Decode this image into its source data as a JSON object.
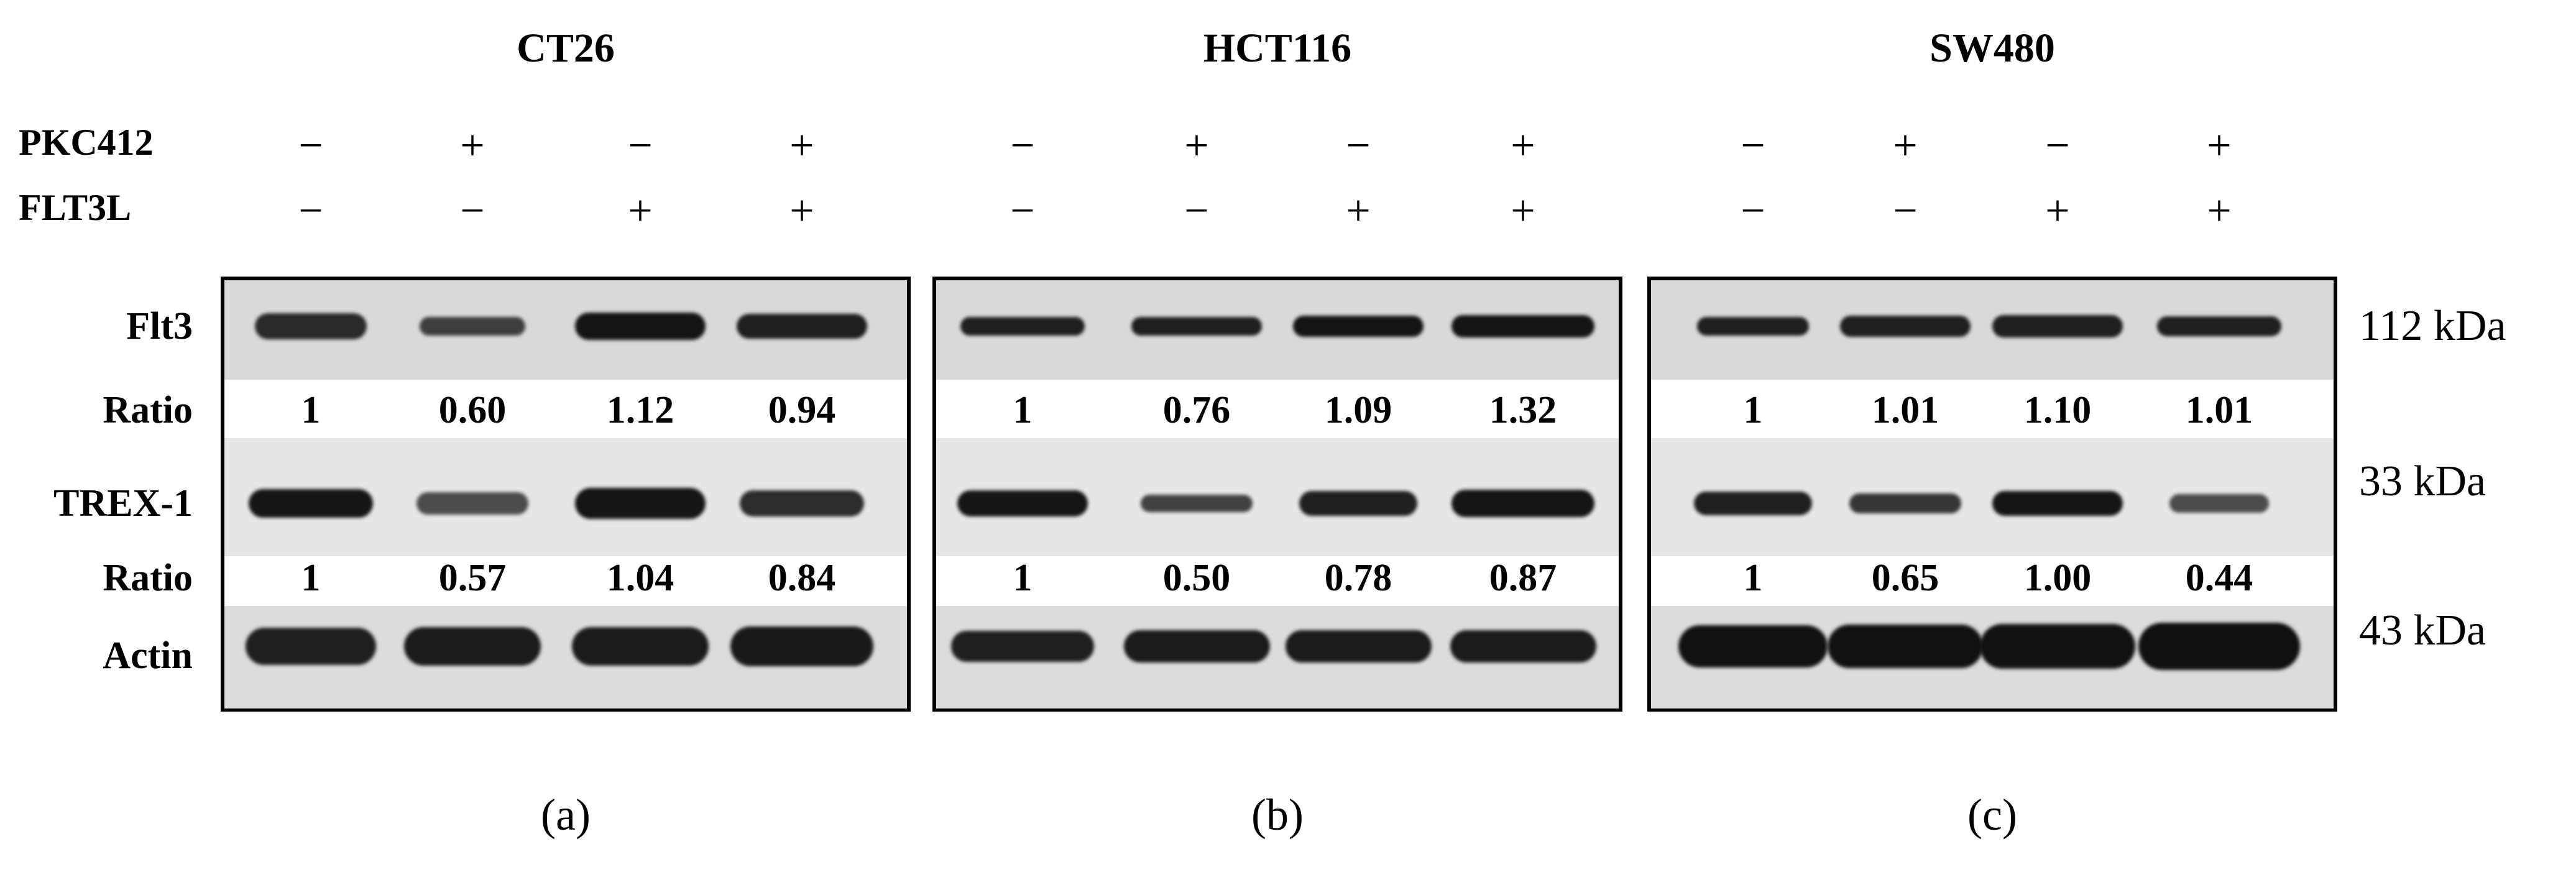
{
  "figure": {
    "panels": [
      {
        "title": "CT26",
        "sublabel": "(a)",
        "pkc412": [
          "−",
          "+",
          "−",
          "+"
        ],
        "flt3l": [
          "−",
          "−",
          "+",
          "+"
        ],
        "flt3_ratio": [
          "1",
          "0.60",
          "1.12",
          "0.94"
        ],
        "trex1_ratio": [
          "1",
          "0.57",
          "1.04",
          "0.84"
        ]
      },
      {
        "title": "HCT116",
        "sublabel": "(b)",
        "pkc412": [
          "−",
          "+",
          "−",
          "+"
        ],
        "flt3l": [
          "−",
          "−",
          "+",
          "+"
        ],
        "flt3_ratio": [
          "1",
          "0.76",
          "1.09",
          "1.32"
        ],
        "trex1_ratio": [
          "1",
          "0.50",
          "0.78",
          "0.87"
        ]
      },
      {
        "title": "SW480",
        "sublabel": "(c)",
        "pkc412": [
          "−",
          "+",
          "−",
          "+"
        ],
        "flt3l": [
          "−",
          "−",
          "+",
          "+"
        ],
        "flt3_ratio": [
          "1",
          "1.01",
          "1.10",
          "1.01"
        ],
        "trex1_ratio": [
          "1",
          "0.65",
          "1.00",
          "0.44"
        ]
      }
    ],
    "conditions": {
      "pkc412": "PKC412",
      "flt3l": "FLT3L"
    },
    "row_labels": {
      "flt3": "Flt3",
      "ratio1": "Ratio",
      "trex1": "TREX-1",
      "ratio2": "Ratio",
      "actin": "Actin"
    },
    "kda_labels": {
      "flt3": "112 kDa",
      "trex1": "33 kDa",
      "actin": "43 kDa"
    }
  }
}
